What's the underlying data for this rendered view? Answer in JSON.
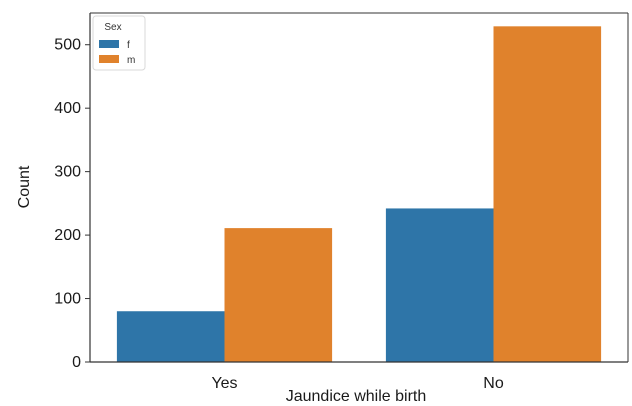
{
  "chart_data": {
    "type": "bar",
    "title": "",
    "xlabel": "Jaundice while birth",
    "ylabel": "Count",
    "categories": [
      "Yes",
      "No"
    ],
    "ylim": [
      0,
      550
    ],
    "yticks": [
      0,
      100,
      200,
      300,
      400,
      500
    ],
    "grid": false,
    "legend": {
      "title": "Sex",
      "position": "top-left"
    },
    "series": [
      {
        "name": "f",
        "color": "#2e75a8",
        "values": [
          80,
          242
        ]
      },
      {
        "name": "m",
        "color": "#e0822c",
        "values": [
          211,
          529
        ]
      }
    ]
  }
}
